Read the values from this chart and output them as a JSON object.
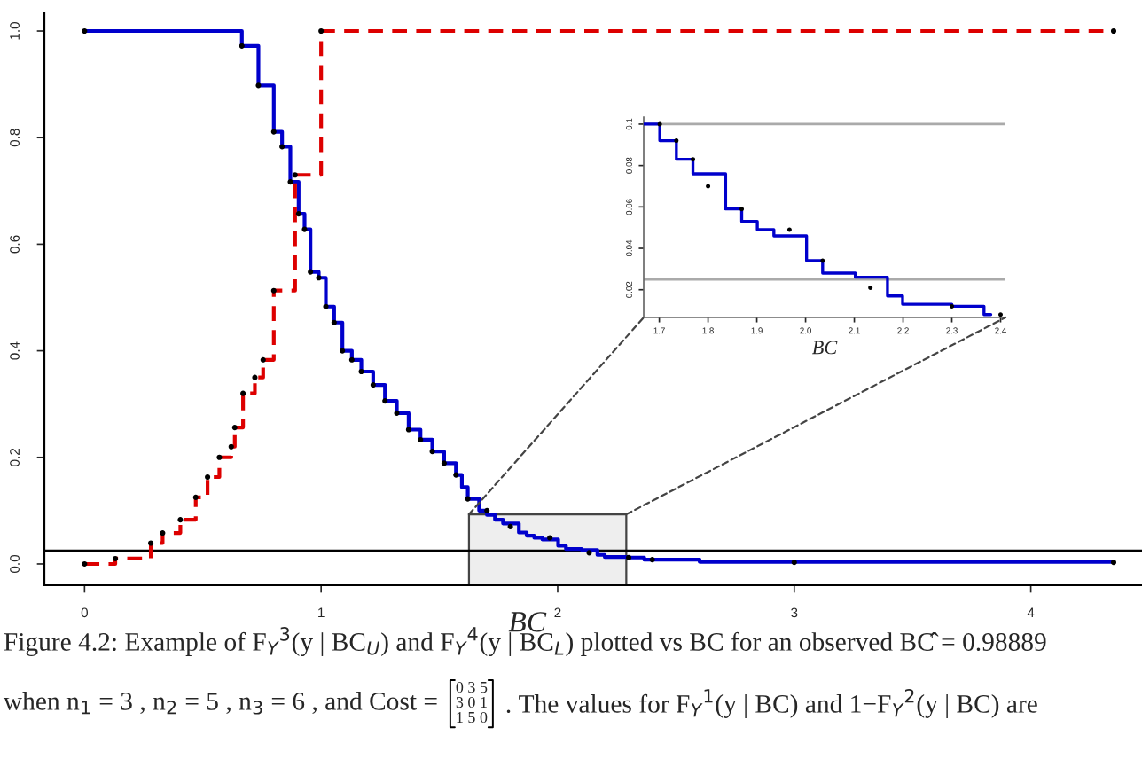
{
  "chart_data": [
    {
      "type": "step",
      "xlabel": "BC",
      "xlim": [
        -0.17,
        4.47
      ],
      "ylim": [
        -0.04,
        1.035
      ],
      "xticks": [
        0,
        1,
        2,
        3,
        4
      ],
      "yticks": [
        {
          "value": 0,
          "label": "0.0"
        },
        0.2,
        0.4,
        0.6,
        0.8,
        {
          "value": 1,
          "label": "1.0"
        }
      ],
      "grid": false,
      "legend": false,
      "series": [
        {
          "color": "#0000cc",
          "line_style": "solid",
          "x": [
            0,
            0.665,
            0.735,
            0.8,
            0.835,
            0.87,
            0.905,
            0.93,
            0.955,
            0.99,
            1.02,
            1.055,
            1.09,
            1.13,
            1.17,
            1.22,
            1.27,
            1.32,
            1.37,
            1.42,
            1.47,
            1.52,
            1.57,
            1.595,
            1.62,
            1.668,
            1.701,
            1.735,
            1.769,
            1.836,
            1.869,
            1.901,
            1.935,
            2.002,
            2.035,
            2.102,
            2.168,
            2.199,
            2.3,
            2.366,
            2.6,
            4.35
          ],
          "values": [
            1.0,
            0.972,
            0.898,
            0.811,
            0.783,
            0.717,
            0.657,
            0.628,
            0.548,
            0.537,
            0.483,
            0.453,
            0.4,
            0.383,
            0.361,
            0.336,
            0.306,
            0.283,
            0.252,
            0.233,
            0.211,
            0.189,
            0.167,
            0.144,
            0.122,
            0.1,
            0.092,
            0.083,
            0.076,
            0.059,
            0.053,
            0.049,
            0.046,
            0.034,
            0.028,
            0.026,
            0.017,
            0.013,
            0.012,
            0.008,
            0.004,
            0.003
          ]
        },
        {
          "color": "#dd0000",
          "line_style": "dashed",
          "x": [
            0,
            0.13,
            0.28,
            0.33,
            0.405,
            0.47,
            0.52,
            0.57,
            0.62,
            0.635,
            0.67,
            0.72,
            0.755,
            0.8,
            0.89,
            1.0,
            4.35
          ],
          "values": [
            0,
            0.01,
            0.039,
            0.058,
            0.083,
            0.125,
            0.163,
            0.2,
            0.22,
            0.256,
            0.32,
            0.35,
            0.383,
            0.513,
            0.73,
            1.0,
            1.0
          ]
        },
        {
          "type": "scatter",
          "color": "#000000",
          "marker": "circle",
          "x": [
            0,
            0.665,
            0.735,
            0.8,
            0.835,
            0.87,
            0.905,
            0.93,
            0.955,
            0.99,
            1.02,
            1.055,
            1.09,
            1.13,
            1.17,
            1.22,
            1.27,
            1.32,
            1.37,
            1.42,
            1.47,
            1.52,
            1.57,
            1.62,
            1.701,
            1.8,
            1.967,
            2.133,
            2.3,
            2.4,
            3.0,
            4.35
          ],
          "values": [
            1.0,
            0.972,
            0.898,
            0.811,
            0.783,
            0.717,
            0.657,
            0.628,
            0.548,
            0.537,
            0.483,
            0.453,
            0.4,
            0.383,
            0.361,
            0.336,
            0.306,
            0.283,
            0.252,
            0.233,
            0.211,
            0.189,
            0.167,
            0.122,
            0.1,
            0.07,
            0.049,
            0.021,
            0.012,
            0.008,
            0.003,
            0.003
          ]
        },
        {
          "type": "scatter",
          "color": "#000000",
          "marker": "circle",
          "x": [
            0,
            0.13,
            0.28,
            0.33,
            0.405,
            0.47,
            0.52,
            0.57,
            0.62,
            0.635,
            0.67,
            0.72,
            0.755,
            0.8,
            0.89,
            1.0,
            4.35
          ],
          "values": [
            0,
            0.01,
            0.039,
            0.058,
            0.083,
            0.125,
            0.163,
            0.2,
            0.22,
            0.256,
            0.32,
            0.35,
            0.383,
            0.513,
            0.73,
            1.0,
            1.0
          ]
        }
      ],
      "ref_lines": [
        {
          "axis": "y",
          "value": 0.025,
          "color": "#000000"
        }
      ],
      "annotations": [
        "Figure 4.2: Example of F$_{Y}$$^{3}$(y | BC$_{U}$) and F$_{Y}$$^{4}$(y | BC$_{L}$) plotted vs BC for an observed BĈ = 0.98889",
        "when n$_{1}$ = 3 , n$_{2}$ = 5 , n$_{3}$ = 6 , and Cost =",
        "0 3 5\n3 0 1\n1 5 0",
        ". The values for F$_{Y}$$^{1}$(y | BC) and 1−F$_{Y}$$^{2}$(y | BC) are"
      ]
    },
    {
      "type": "step",
      "xlabel": "BC",
      "xlim": [
        1.668,
        2.41
      ],
      "ylim": [
        0.0066,
        0.1034
      ],
      "xticks": [
        1.7,
        1.8,
        1.9,
        {
          "value": 2,
          "label": "2.0"
        },
        2.1,
        2.2,
        2.3,
        2.4
      ],
      "yticks": [
        0.02,
        0.04,
        0.06,
        0.08,
        0.1
      ],
      "grid": false,
      "legend": false,
      "series": [
        {
          "color": "#0000cc",
          "line_style": "solid",
          "x": [
            1.668,
            1.701,
            1.735,
            1.769,
            1.836,
            1.869,
            1.901,
            1.935,
            2.002,
            2.035,
            2.102,
            2.168,
            2.199,
            2.3,
            2.366,
            2.38
          ],
          "values": [
            0.1,
            0.092,
            0.083,
            0.076,
            0.059,
            0.053,
            0.049,
            0.046,
            0.034,
            0.028,
            0.026,
            0.017,
            0.013,
            0.012,
            0.008,
            0.008
          ]
        },
        {
          "type": "scatter",
          "color": "#000000",
          "marker": "circle",
          "x": [
            1.701,
            1.735,
            1.769,
            1.8,
            1.869,
            1.967,
            2.035,
            2.133,
            2.3,
            2.4
          ],
          "values": [
            0.1,
            0.092,
            0.083,
            0.07,
            0.059,
            0.049,
            0.034,
            0.021,
            0.012,
            0.008
          ]
        }
      ],
      "ref_lines": [
        {
          "axis": "y",
          "value": 0.025,
          "color": "#aaaaaa"
        },
        {
          "axis": "y",
          "value": 0.1,
          "color": "#aaaaaa"
        }
      ]
    }
  ]
}
